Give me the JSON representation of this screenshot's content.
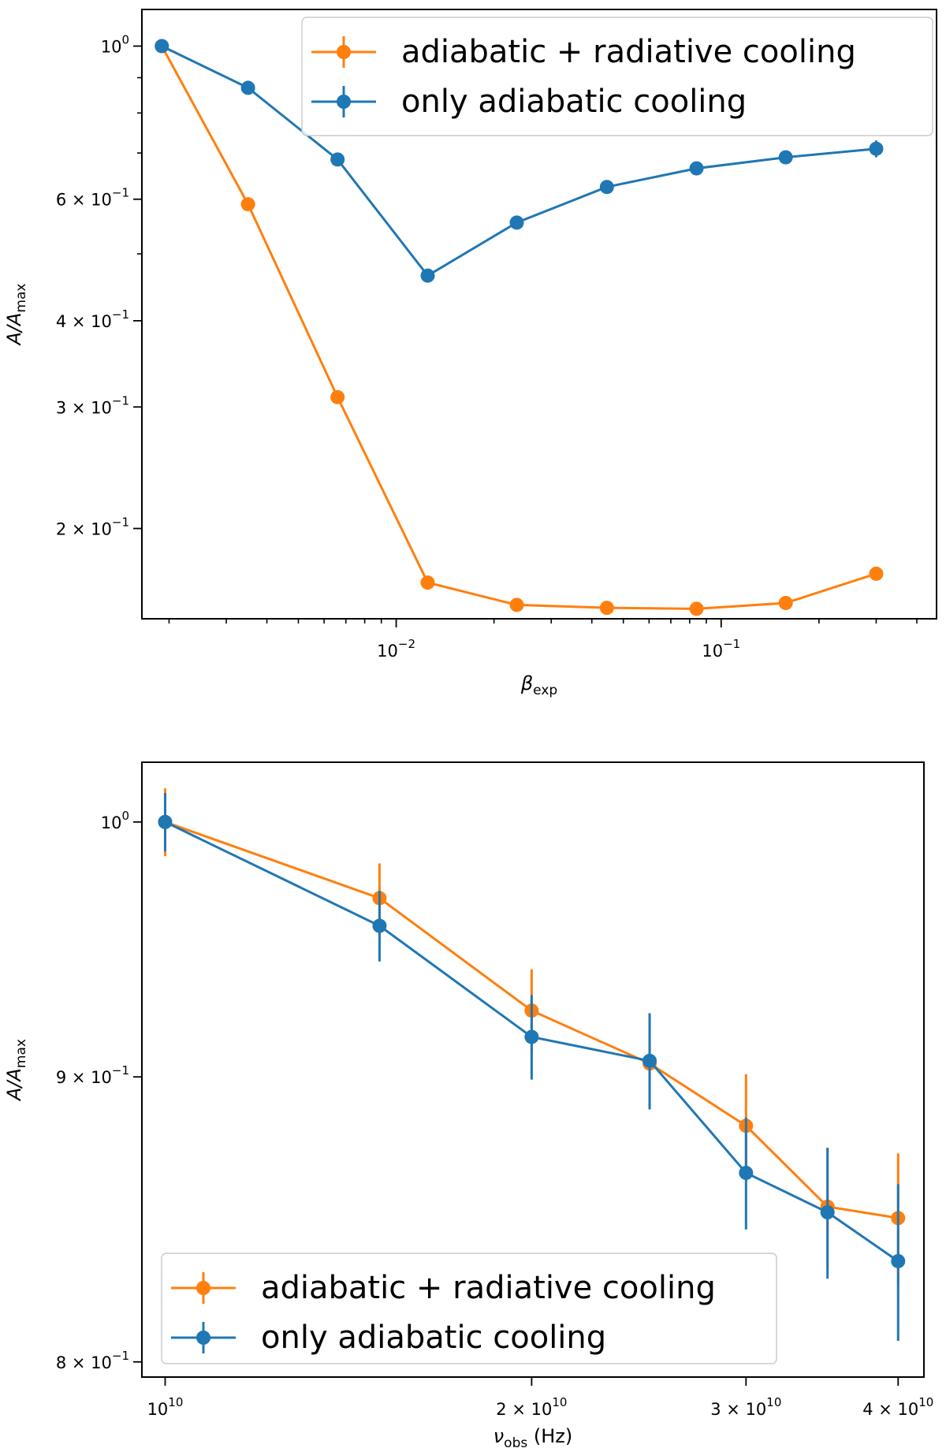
{
  "chart_data": [
    {
      "type": "line",
      "xscale": "log",
      "yscale": "log",
      "xlabel": "β",
      "xlabel_sub": "exp",
      "ylabel": "A/A",
      "ylabel_sub": "max",
      "xlim": [
        0.00165,
        0.46
      ],
      "ylim": [
        0.148,
        1.13
      ],
      "xticks": [
        {
          "value": 0.01,
          "base": "10",
          "exp": "−2"
        },
        {
          "value": 0.1,
          "base": "10",
          "exp": "−1"
        }
      ],
      "yticks": [
        {
          "value": 1.0,
          "base": "10",
          "exp": "0",
          "coef": ""
        },
        {
          "value": 0.6,
          "base": "10",
          "exp": "−1",
          "coef": "6 × "
        },
        {
          "value": 0.4,
          "base": "10",
          "exp": "−1",
          "coef": "4 × "
        },
        {
          "value": 0.3,
          "base": "10",
          "exp": "−1",
          "coef": "3 × "
        },
        {
          "value": 0.2,
          "base": "10",
          "exp": "−1",
          "coef": "2 × "
        }
      ],
      "legend_position": "upper right",
      "series": [
        {
          "name": "adiabatic + radiative cooling",
          "color": "#ff7f0e",
          "x": [
            0.0019,
            0.0035,
            0.0066,
            0.0125,
            0.0235,
            0.0445,
            0.084,
            0.158,
            0.3
          ],
          "y": [
            1.0,
            0.59,
            0.31,
            0.167,
            0.155,
            0.1535,
            0.153,
            0.156,
            0.172
          ],
          "err": [
            0,
            0,
            0,
            0,
            0,
            0,
            0,
            0,
            0
          ]
        },
        {
          "name": "only adiabatic cooling",
          "color": "#1f77b4",
          "x": [
            0.0019,
            0.0035,
            0.0066,
            0.0125,
            0.0235,
            0.0445,
            0.084,
            0.158,
            0.3
          ],
          "y": [
            1.0,
            0.87,
            0.685,
            0.465,
            0.555,
            0.625,
            0.665,
            0.69,
            0.71
          ],
          "err": [
            0,
            0,
            0,
            0,
            0,
            0,
            0,
            0,
            0.02
          ]
        }
      ]
    },
    {
      "type": "line",
      "xscale": "log",
      "yscale": "log",
      "xlabel": "ν",
      "xlabel_sub": "obs",
      "xlabel_suffix": " (Hz)",
      "ylabel": "A/A",
      "ylabel_sub": "max",
      "xlim": [
        9570000000.0,
        42000000000.0
      ],
      "ylim": [
        0.795,
        1.025
      ],
      "xticks": [
        {
          "value": 10000000000.0,
          "coef": "",
          "base": "10",
          "exp": "10"
        },
        {
          "value": 20000000000.0,
          "coef": "2 × ",
          "base": "10",
          "exp": "10"
        },
        {
          "value": 30000000000.0,
          "coef": "3 × ",
          "base": "10",
          "exp": "10"
        },
        {
          "value": 40000000000.0,
          "coef": "4 × ",
          "base": "10",
          "exp": "10"
        }
      ],
      "yticks": [
        {
          "value": 1.0,
          "base": "10",
          "exp": "0",
          "coef": ""
        },
        {
          "value": 0.9,
          "base": "10",
          "exp": "−1",
          "coef": "9 × "
        },
        {
          "value": 0.8,
          "base": "10",
          "exp": "−1",
          "coef": "8 × "
        }
      ],
      "legend_position": "lower left",
      "series": [
        {
          "name": "adiabatic + radiative cooling",
          "color": "#ff7f0e",
          "x": [
            10000000000.0,
            15000000000.0,
            20000000000.0,
            25000000000.0,
            30000000000.0,
            35000000000.0,
            40000000000.0
          ],
          "y": [
            1.0,
            0.969,
            0.925,
            0.905,
            0.882,
            0.853,
            0.849
          ],
          "err": [
            0.014,
            0.014,
            0.016,
            0.017,
            0.019,
            0.021,
            0.023
          ]
        },
        {
          "name": "only adiabatic cooling",
          "color": "#1f77b4",
          "x": [
            10000000000.0,
            15000000000.0,
            20000000000.0,
            25000000000.0,
            30000000000.0,
            35000000000.0,
            40000000000.0
          ],
          "y": [
            1.0,
            0.958,
            0.915,
            0.906,
            0.865,
            0.851,
            0.834
          ],
          "err": [
            0.012,
            0.014,
            0.016,
            0.018,
            0.02,
            0.023,
            0.027
          ]
        }
      ]
    }
  ]
}
